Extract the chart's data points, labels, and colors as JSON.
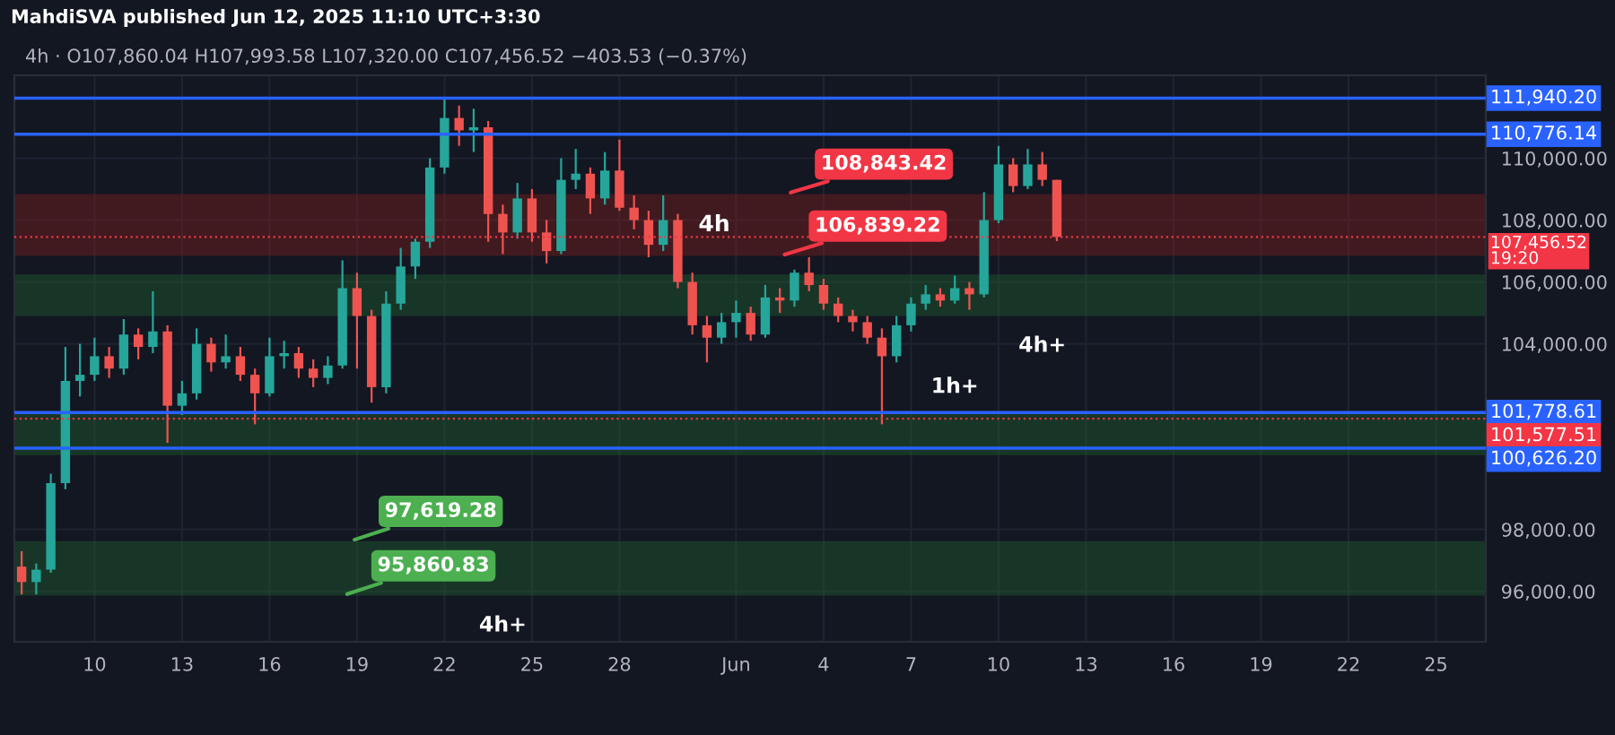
{
  "chart_data": {
    "type": "candlestick",
    "title": "4h · O107,860.04 H107,993.58 L107,320.00 C107,456.52 −403.53 (−0.37%)",
    "x": [
      "2025-05-07T12:00",
      "2025-05-08T00:00",
      "2025-05-08T12:00",
      "2025-05-09T00:00",
      "2025-05-09T12:00",
      "2025-05-10T00:00",
      "2025-05-10T12:00",
      "2025-05-11T00:00",
      "2025-05-11T12:00",
      "2025-05-12T00:00",
      "2025-05-12T12:00",
      "2025-05-13T00:00",
      "2025-05-13T12:00",
      "2025-05-14T00:00",
      "2025-05-14T12:00",
      "2025-05-15T00:00",
      "2025-05-15T12:00",
      "2025-05-16T00:00",
      "2025-05-16T12:00",
      "2025-05-17T00:00",
      "2025-05-17T12:00",
      "2025-05-18T00:00",
      "2025-05-18T12:00",
      "2025-05-19T00:00",
      "2025-05-19T12:00",
      "2025-05-20T00:00",
      "2025-05-20T12:00",
      "2025-05-21T00:00",
      "2025-05-21T12:00",
      "2025-05-22T00:00",
      "2025-05-22T12:00",
      "2025-05-23T00:00",
      "2025-05-23T12:00",
      "2025-05-24T00:00",
      "2025-05-24T12:00",
      "2025-05-25T00:00",
      "2025-05-25T12:00",
      "2025-05-26T00:00",
      "2025-05-26T12:00",
      "2025-05-27T00:00",
      "2025-05-27T12:00",
      "2025-05-28T00:00",
      "2025-05-28T12:00",
      "2025-05-29T00:00",
      "2025-05-29T12:00",
      "2025-05-30T00:00",
      "2025-05-30T12:00",
      "2025-05-31T00:00",
      "2025-05-31T12:00",
      "2025-06-01T00:00",
      "2025-06-01T12:00",
      "2025-06-02T00:00",
      "2025-06-02T12:00",
      "2025-06-03T00:00",
      "2025-06-03T12:00",
      "2025-06-04T00:00",
      "2025-06-04T12:00",
      "2025-06-05T00:00",
      "2025-06-05T12:00",
      "2025-06-06T00:00",
      "2025-06-06T12:00",
      "2025-06-07T00:00",
      "2025-06-07T12:00",
      "2025-06-08T00:00",
      "2025-06-08T12:00",
      "2025-06-09T00:00",
      "2025-06-09T12:00",
      "2025-06-10T00:00",
      "2025-06-10T12:00",
      "2025-06-11T00:00",
      "2025-06-11T12:00",
      "2025-06-12T00:00"
    ],
    "ohlc": [
      [
        96800,
        97300,
        95900,
        96300
      ],
      [
        96300,
        96900,
        95900,
        96700
      ],
      [
        96700,
        99800,
        96600,
        99500
      ],
      [
        99500,
        103900,
        99300,
        102800
      ],
      [
        102800,
        104000,
        102300,
        103000
      ],
      [
        103000,
        104200,
        102800,
        103600
      ],
      [
        103600,
        103900,
        102900,
        103200
      ],
      [
        103200,
        104800,
        103000,
        104300
      ],
      [
        104300,
        104500,
        103500,
        103900
      ],
      [
        103900,
        105700,
        103700,
        104400
      ],
      [
        104400,
        104600,
        100800,
        102000
      ],
      [
        102000,
        102800,
        101700,
        102400
      ],
      [
        102400,
        104500,
        102200,
        104000
      ],
      [
        104000,
        104200,
        103100,
        103400
      ],
      [
        103400,
        104300,
        103200,
        103600
      ],
      [
        103600,
        103900,
        102800,
        103000
      ],
      [
        103000,
        103200,
        101400,
        102400
      ],
      [
        102400,
        104200,
        102300,
        103600
      ],
      [
        103600,
        104100,
        103200,
        103700
      ],
      [
        103700,
        103900,
        102900,
        103200
      ],
      [
        103200,
        103500,
        102600,
        102900
      ],
      [
        102900,
        103600,
        102700,
        103300
      ],
      [
        103300,
        106700,
        103200,
        105800
      ],
      [
        105800,
        106300,
        103200,
        104900
      ],
      [
        104900,
        105100,
        102100,
        102600
      ],
      [
        102600,
        105700,
        102400,
        105300
      ],
      [
        105300,
        107100,
        105100,
        106500
      ],
      [
        106500,
        107400,
        106100,
        107300
      ],
      [
        107300,
        110000,
        107100,
        109700
      ],
      [
        109700,
        111900,
        109500,
        111300
      ],
      [
        111300,
        111700,
        110400,
        110900
      ],
      [
        110900,
        111600,
        110200,
        111000
      ],
      [
        111000,
        111200,
        107300,
        108200
      ],
      [
        108200,
        108500,
        106900,
        107600
      ],
      [
        107600,
        109200,
        107400,
        108700
      ],
      [
        108700,
        109000,
        107300,
        107600
      ],
      [
        107600,
        108000,
        106600,
        107000
      ],
      [
        107000,
        110000,
        106900,
        109300
      ],
      [
        109300,
        110300,
        109000,
        109500
      ],
      [
        109500,
        109700,
        108200,
        108700
      ],
      [
        108700,
        110200,
        108500,
        109600
      ],
      [
        109600,
        110600,
        108300,
        108400
      ],
      [
        108400,
        108800,
        107700,
        108000
      ],
      [
        108000,
        108300,
        106800,
        107200
      ],
      [
        107200,
        108800,
        107000,
        108000
      ],
      [
        108000,
        108200,
        105800,
        106000
      ],
      [
        106000,
        106300,
        104300,
        104600
      ],
      [
        104600,
        104900,
        103400,
        104200
      ],
      [
        104200,
        105000,
        104000,
        104700
      ],
      [
        104700,
        105400,
        104200,
        105000
      ],
      [
        105000,
        105200,
        104100,
        104300
      ],
      [
        104300,
        105900,
        104200,
        105500
      ],
      [
        105500,
        105800,
        105000,
        105400
      ],
      [
        105400,
        106400,
        105200,
        106300
      ],
      [
        106300,
        106800,
        105700,
        105900
      ],
      [
        105900,
        106100,
        105100,
        105300
      ],
      [
        105300,
        105500,
        104700,
        104900
      ],
      [
        104900,
        105100,
        104400,
        104700
      ],
      [
        104700,
        104900,
        104000,
        104200
      ],
      [
        104200,
        104500,
        101400,
        103600
      ],
      [
        103600,
        104900,
        103400,
        104600
      ],
      [
        104600,
        105500,
        104400,
        105300
      ],
      [
        105300,
        105900,
        105100,
        105600
      ],
      [
        105600,
        105800,
        105200,
        105400
      ],
      [
        105400,
        106200,
        105300,
        105800
      ],
      [
        105800,
        106000,
        105100,
        105600
      ],
      [
        105600,
        108900,
        105500,
        108000
      ],
      [
        108000,
        110400,
        107900,
        109800
      ],
      [
        109800,
        110000,
        108900,
        109100
      ],
      [
        109100,
        110300,
        109000,
        109800
      ],
      [
        109800,
        110200,
        109100,
        109300
      ],
      [
        109300,
        109300,
        107320,
        107456.52
      ]
    ],
    "xlim": [
      "2025-05-07T06:00",
      "2025-06-26T17:00"
    ],
    "xticks": [
      {
        "value": "2025-05-10",
        "label": "10"
      },
      {
        "value": "2025-05-13",
        "label": "13"
      },
      {
        "value": "2025-05-16",
        "label": "16"
      },
      {
        "value": "2025-05-19",
        "label": "19"
      },
      {
        "value": "2025-05-22",
        "label": "22"
      },
      {
        "value": "2025-05-25",
        "label": "25"
      },
      {
        "value": "2025-05-28",
        "label": "28"
      },
      {
        "value": "2025-06-01",
        "label": "Jun"
      },
      {
        "value": "2025-06-04",
        "label": "4"
      },
      {
        "value": "2025-06-07",
        "label": "7"
      },
      {
        "value": "2025-06-10",
        "label": "10"
      },
      {
        "value": "2025-06-13",
        "label": "13"
      },
      {
        "value": "2025-06-16",
        "label": "16"
      },
      {
        "value": "2025-06-19",
        "label": "19"
      },
      {
        "value": "2025-06-22",
        "label": "22"
      },
      {
        "value": "2025-06-25",
        "label": "25"
      }
    ],
    "ylim": [
      94370,
      112680
    ],
    "yticks": [
      {
        "value": 96000,
        "label": "96,000.00"
      },
      {
        "value": 98000,
        "label": "98,000.00"
      },
      {
        "value": 104000,
        "label": "104,000.00"
      },
      {
        "value": 106000,
        "label": "106,000.00"
      },
      {
        "value": 108000,
        "label": "108,000.00"
      },
      {
        "value": 110000,
        "label": "110,000.00"
      }
    ],
    "grid": true,
    "ref_lines": [
      {
        "axis": "y",
        "value": 111940.2,
        "label": "111,940.20",
        "color": "#2962ff",
        "line_style": "solid"
      },
      {
        "axis": "y",
        "value": 110776.14,
        "label": "110,776.14",
        "color": "#2962ff",
        "line_style": "solid"
      },
      {
        "axis": "y",
        "value": 107456.52,
        "label": "107,456.52\n19:20",
        "color": "#f23645",
        "line_style": "dotted"
      },
      {
        "axis": "y",
        "value": 101778.61,
        "label": "101,778.61",
        "color": "#2962ff",
        "line_style": "solid"
      },
      {
        "axis": "y",
        "value": 101577.51,
        "label": "101,577.51",
        "color": "#f23645",
        "line_style": "dotted"
      },
      {
        "axis": "y",
        "value": 100626.2,
        "label": "100,626.20",
        "color": "#2962ff",
        "line_style": "solid"
      }
    ],
    "bands": [
      {
        "axis": "y",
        "from": 95860.83,
        "to": 97619.28,
        "label": "4h+",
        "color": "#1e5e2e"
      },
      {
        "axis": "y",
        "from": 106839.22,
        "to": 108843.42,
        "label": "4h",
        "color": "#7a1f1f"
      },
      {
        "axis": "y",
        "from": 104900,
        "to": 106240,
        "label": "4h+",
        "color": "#1e5e2e"
      },
      {
        "axis": "y",
        "from": 100400,
        "to": 101800,
        "label": "1h+",
        "color": "#1e5e2e"
      }
    ],
    "annotations": [
      "MahdiSVA published Jun 12, 2025 11:10 UTC+3:30",
      {
        "text": "97,619.28",
        "x": "2025-05-18T18:00",
        "y": 97619.28
      },
      {
        "text": "95,860.83",
        "x": "2025-05-18T12:00",
        "y": 95860.83
      },
      {
        "text": "108,843.42",
        "x": "2025-06-02T17:00",
        "y": 108843.42
      },
      {
        "text": "106,839.22",
        "x": "2025-06-02T12:00",
        "y": 106839.22
      }
    ]
  }
}
